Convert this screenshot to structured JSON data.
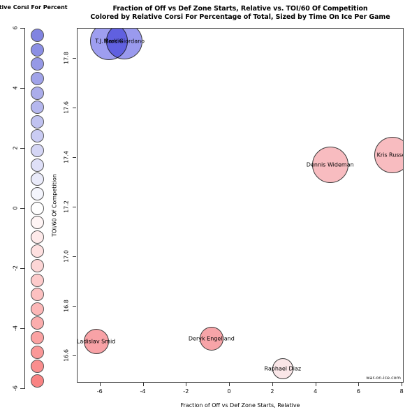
{
  "chart_data": {
    "type": "scatter",
    "title": "Fraction of Off vs Def Zone Starts, Relative vs. TOI/60 Of Competition",
    "subtitle": "Colored by Relative Corsi For Percentage of Total, Sized by Time On Ice Per Game",
    "xlabel": "Fraction of Off vs Def Zone Starts, Relative",
    "ylabel": "TOI/60 Of Competition",
    "xlim": [
      -7.06,
      8.09
    ],
    "ylim": [
      16.49,
      17.92
    ],
    "x_ticks": [
      "-6",
      "-4",
      "-2",
      "0",
      "2",
      "4",
      "6",
      "8"
    ],
    "y_ticks": [
      "16.6",
      "16.8",
      "17.0",
      "17.2",
      "17.4",
      "17.6",
      "17.8"
    ],
    "grid": false,
    "points": [
      {
        "name": "T.J. Brodie",
        "x": -5.6,
        "y": 17.87,
        "radius_px": 27,
        "fill": "#9E9EF0"
      },
      {
        "name": "Mark Giordano",
        "x": -4.9,
        "y": 17.87,
        "radius_px": 26,
        "fill": "#9A9AEE"
      },
      {
        "name": "Dennis Wideman",
        "x": 4.65,
        "y": 17.37,
        "radius_px": 26,
        "fill": "#F8BCC0"
      },
      {
        "name": "Kris Russell",
        "x": 7.55,
        "y": 17.41,
        "radius_px": 26,
        "fill": "#F8BCC0"
      },
      {
        "name": "Ladislav Smid",
        "x": -6.2,
        "y": 16.66,
        "radius_px": 18,
        "fill": "#F8A2A6"
      },
      {
        "name": "Deryk Engelland",
        "x": -0.85,
        "y": 16.67,
        "radius_px": 17,
        "fill": "#F7A4A8"
      },
      {
        "name": "Raphael Diaz",
        "x": 2.45,
        "y": 16.55,
        "radius_px": 15,
        "fill": "#FAE6E8"
      }
    ],
    "legend": {
      "title": "Relative Corsi For Percent",
      "position": "left",
      "ticks": [
        "6",
        "4",
        "2",
        "0",
        "-2",
        "-4",
        "-6"
      ],
      "min": -6,
      "max": 6,
      "circle_count": 25,
      "color_max": "#7B7FE0",
      "color_zero": "#FFFFFF",
      "color_min": "#F97E7E"
    },
    "watermark": "war-on-ice.com"
  }
}
